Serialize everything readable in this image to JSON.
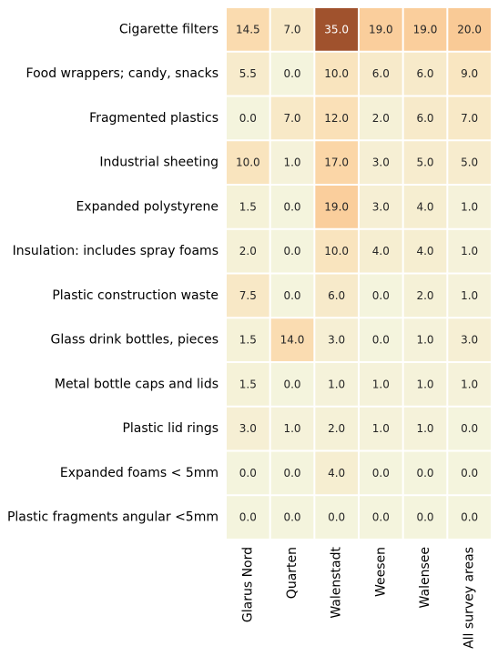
{
  "chart_data": {
    "type": "heatmap",
    "rows": [
      "Cigarette filters",
      "Food wrappers; candy, snacks",
      "Fragmented plastics",
      "Industrial sheeting",
      "Expanded polystyrene",
      "Insulation: includes spray foams",
      "Plastic construction waste",
      "Glass drink bottles, pieces",
      "Metal bottle caps and lids",
      "Plastic lid rings",
      "Expanded foams < 5mm",
      "Plastic fragments angular <5mm"
    ],
    "columns": [
      "Glarus Nord",
      "Quarten",
      "Walenstadt",
      "Weesen",
      "Walensee",
      "All survey areas"
    ],
    "values": [
      [
        14.5,
        7.0,
        35.0,
        19.0,
        19.0,
        20.0
      ],
      [
        5.5,
        0.0,
        10.0,
        6.0,
        6.0,
        9.0
      ],
      [
        0.0,
        7.0,
        12.0,
        2.0,
        6.0,
        7.0
      ],
      [
        10.0,
        1.0,
        17.0,
        3.0,
        5.0,
        5.0
      ],
      [
        1.5,
        0.0,
        19.0,
        3.0,
        4.0,
        1.0
      ],
      [
        2.0,
        0.0,
        10.0,
        4.0,
        4.0,
        1.0
      ],
      [
        7.5,
        0.0,
        6.0,
        0.0,
        2.0,
        1.0
      ],
      [
        1.5,
        14.0,
        3.0,
        0.0,
        1.0,
        3.0
      ],
      [
        1.5,
        0.0,
        1.0,
        1.0,
        1.0,
        1.0
      ],
      [
        3.0,
        1.0,
        2.0,
        1.0,
        1.0,
        0.0
      ],
      [
        0.0,
        0.0,
        4.0,
        0.0,
        0.0,
        0.0
      ],
      [
        0.0,
        0.0,
        0.0,
        0.0,
        0.0,
        0.0
      ]
    ],
    "value_format": "0.0",
    "color_scale": {
      "min": 0,
      "max": 35,
      "stops": [
        "#f4f4dd",
        "#f9e6c2",
        "#fbd5a5",
        "#f5ad72",
        "#a0522d"
      ]
    },
    "grid_lines": true,
    "grid_line_color": "#ffffff",
    "legend": "none"
  }
}
